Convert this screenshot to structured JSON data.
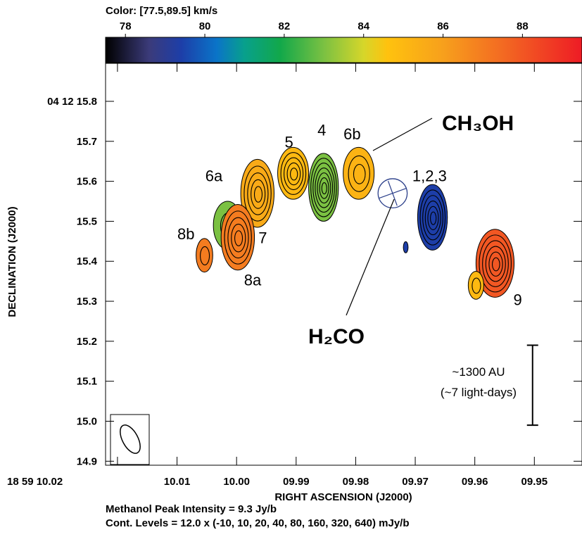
{
  "chart_data": {
    "type": "heatmap",
    "colorbar": {
      "title": "Color: [77.5,89.5] km/s",
      "range": [
        77.5,
        89.5
      ],
      "ticks": [
        78,
        80,
        82,
        84,
        86,
        88
      ],
      "stops": [
        {
          "v": 77.5,
          "color": "#000000"
        },
        {
          "v": 78.6,
          "color": "#3b3b7a"
        },
        {
          "v": 79.4,
          "color": "#1d3ea8"
        },
        {
          "v": 80.3,
          "color": "#0a74c8"
        },
        {
          "v": 81.0,
          "color": "#08a08c"
        },
        {
          "v": 81.9,
          "color": "#12a84a"
        },
        {
          "v": 83.0,
          "color": "#7bc142"
        },
        {
          "v": 84.0,
          "color": "#d6d62a"
        },
        {
          "v": 84.6,
          "color": "#ffc20e"
        },
        {
          "v": 86.0,
          "color": "#f7a01c"
        },
        {
          "v": 87.5,
          "color": "#f36a22"
        },
        {
          "v": 89.5,
          "color": "#ee1c25"
        }
      ]
    },
    "x_axis": {
      "label": "RIGHT ASCENSION (J2000)",
      "range": [
        10.022,
        9.942
      ],
      "ticks": [
        {
          "v": 10.02,
          "label": "18 59 10.02"
        },
        {
          "v": 10.01,
          "label": "10.01"
        },
        {
          "v": 10.0,
          "label": "10.00"
        },
        {
          "v": 9.99,
          "label": "09.99"
        },
        {
          "v": 9.98,
          "label": "09.98"
        },
        {
          "v": 9.97,
          "label": "09.97"
        },
        {
          "v": 9.96,
          "label": "09.96"
        },
        {
          "v": 9.95,
          "label": "09.95"
        }
      ]
    },
    "y_axis": {
      "label": "DECLINATION (J2000)",
      "range": [
        14.89,
        15.895
      ],
      "ticks": [
        {
          "v": 15.8,
          "label": "04 12 15.8"
        },
        {
          "v": 15.7,
          "label": "15.7"
        },
        {
          "v": 15.6,
          "label": "15.6"
        },
        {
          "v": 15.5,
          "label": "15.5"
        },
        {
          "v": 15.4,
          "label": "15.4"
        },
        {
          "v": 15.3,
          "label": "15.3"
        },
        {
          "v": 15.2,
          "label": "15.2"
        },
        {
          "v": 15.1,
          "label": "15.1"
        },
        {
          "v": 15.0,
          "label": "15.0"
        },
        {
          "v": 14.9,
          "label": "14.9"
        }
      ]
    },
    "sources": [
      {
        "ra": 9.9854,
        "dec": 15.585,
        "rx": 0.0025,
        "ry": 0.085,
        "velocity": 83.0,
        "levels": 6
      },
      {
        "ra": 9.9905,
        "dec": 15.62,
        "rx": 0.0026,
        "ry": 0.065,
        "velocity": 85.0,
        "levels": 4
      },
      {
        "ra": 9.9965,
        "dec": 15.57,
        "rx": 0.0028,
        "ry": 0.085,
        "velocity": 85.6,
        "levels": 4
      },
      {
        "ra": 9.9795,
        "dec": 15.62,
        "rx": 0.0026,
        "ry": 0.065,
        "velocity": 85.2,
        "levels": 2
      },
      {
        "ra": 10.0015,
        "dec": 15.49,
        "rx": 0.0024,
        "ry": 0.06,
        "velocity": 83.0,
        "levels": 1
      },
      {
        "ra": 9.9998,
        "dec": 15.46,
        "rx": 0.0028,
        "ry": 0.082,
        "velocity": 87.0,
        "levels": 4
      },
      {
        "ra": 10.0054,
        "dec": 15.415,
        "rx": 0.0014,
        "ry": 0.042,
        "velocity": 87.0,
        "levels": 1
      },
      {
        "ra": 9.9671,
        "dec": 15.51,
        "rx": 0.0025,
        "ry": 0.082,
        "velocity": 79.4,
        "levels": 5
      },
      {
        "ra": 9.9716,
        "dec": 15.435,
        "rx": 0.0004,
        "ry": 0.014,
        "velocity": 79.4,
        "levels": 0
      },
      {
        "ra": 9.9566,
        "dec": 15.395,
        "rx": 0.0032,
        "ry": 0.085,
        "velocity": 88.0,
        "levels": 5
      },
      {
        "ra": 9.9598,
        "dec": 15.34,
        "rx": 0.0013,
        "ry": 0.035,
        "velocity": 85.0,
        "levels": 1
      }
    ],
    "labels": [
      {
        "text": "4",
        "ra": 9.9857,
        "dec": 15.715
      },
      {
        "text": "5",
        "ra": 9.9912,
        "dec": 15.685
      },
      {
        "text": "6b",
        "ra": 9.9806,
        "dec": 15.705
      },
      {
        "text": "6a",
        "ra": 10.0038,
        "dec": 15.6
      },
      {
        "text": "1,2,3",
        "ra": 9.9676,
        "dec": 15.6
      },
      {
        "text": "7",
        "ra": 9.9956,
        "dec": 15.445
      },
      {
        "text": "8b",
        "ra": 10.0085,
        "dec": 15.455
      },
      {
        "text": "8a",
        "ra": 9.9973,
        "dec": 15.34
      },
      {
        "text": "9",
        "ra": 9.9528,
        "dec": 15.29
      }
    ],
    "annotations": {
      "ch3oh": "CH₃OH",
      "h2co": "H₂CO",
      "h2co_marker": {
        "ra": 9.9738,
        "dec": 15.57,
        "radius_ra": 0.00245
      },
      "scale_bar": {
        "ra": 9.9503,
        "dec_top": 15.19,
        "dec_bottom": 14.99,
        "line1": "~1300 AU",
        "line2": "(~7 light-days)"
      },
      "beam": {
        "angle_deg": -28
      }
    },
    "footer_line1": "Methanol Peak Intensity = 9.3 Jy/b",
    "footer_line2": "Cont. Levels = 12.0 x (-10, 10, 20, 40, 80, 160, 320, 640) mJy/b"
  }
}
